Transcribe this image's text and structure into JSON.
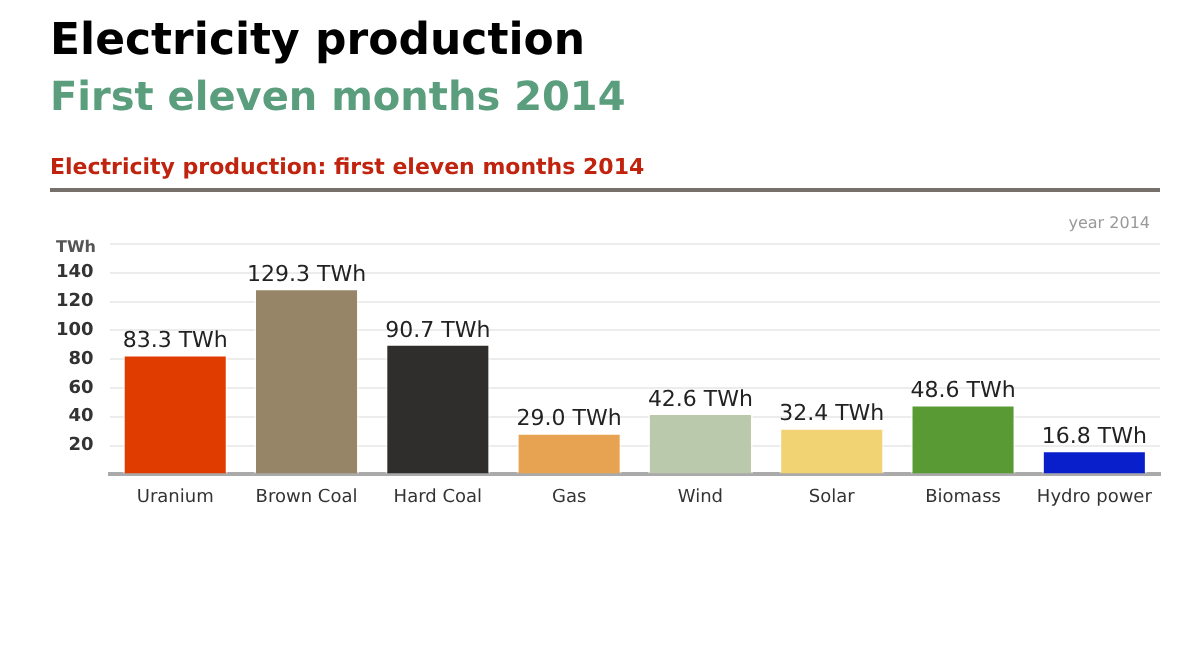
{
  "chart_data": {
    "type": "bar",
    "title": "Electricity production",
    "subtitle": "First eleven months 2014",
    "ylabel": "TWh",
    "annotations": [
      "Electricity production: first eleven months 2014",
      "year 2014"
    ],
    "categories": [
      "Uranium",
      "Brown Coal",
      "Hard Coal",
      "Gas",
      "Wind",
      "Solar",
      "Biomass",
      "Hydro power"
    ],
    "values": [
      83.3,
      129.3,
      90.7,
      29.0,
      42.6,
      32.4,
      48.6,
      16.8
    ],
    "colors": [
      "#e03c00",
      "#978567",
      "#2f2e2c",
      "#e8a352",
      "#bac8ab",
      "#f2d374",
      "#5a9a35",
      "#0a1fcc"
    ],
    "value_labels": [
      "83.3 TWh",
      "129.3 TWh",
      "90.7 TWh",
      "29.0 TWh",
      "42.6 TWh",
      "32.4 TWh",
      "48.6 TWh",
      "16.8 TWh"
    ],
    "ylim": [
      0,
      160
    ],
    "yticks": [
      {
        "value": 0,
        "label": null
      },
      20,
      40,
      60,
      80,
      100,
      120,
      140,
      {
        "value": 160,
        "label": null
      }
    ],
    "grid": "y",
    "legend": false
  }
}
